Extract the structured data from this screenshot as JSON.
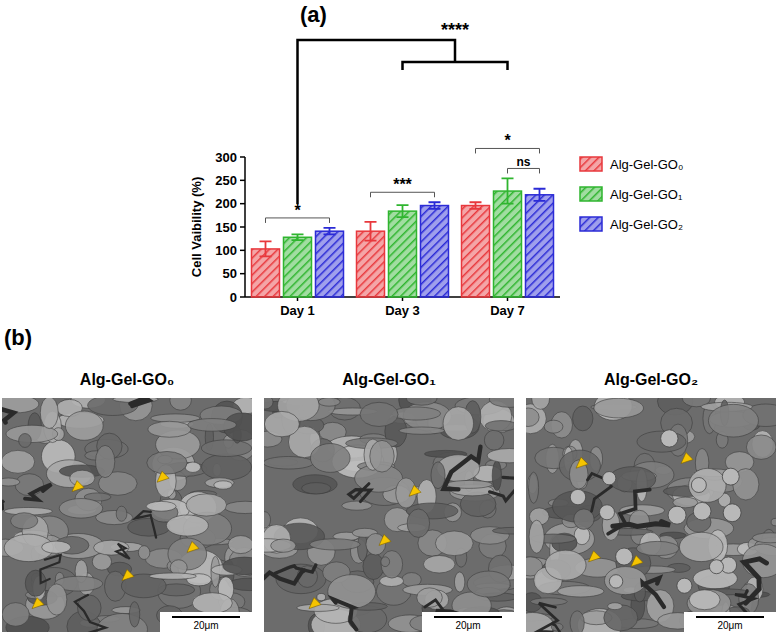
{
  "chart_data": {
    "type": "bar",
    "panel": "(a)",
    "y_label": "Cell Vaibility (%)",
    "categories": [
      "Day 1",
      "Day 3",
      "Day 7"
    ],
    "series": [
      {
        "name": "Alg-Gel-GO₀",
        "color": "#e8383d",
        "values": [
          103,
          141,
          196
        ],
        "errors": [
          16,
          20,
          7
        ]
      },
      {
        "name": "Alg-Gel-GO₁",
        "color": "#2fb52f",
        "values": [
          128,
          184,
          227
        ],
        "errors": [
          6,
          13,
          27
        ]
      },
      {
        "name": "Alg-Gel-GO₂",
        "color": "#2b2bd6",
        "values": [
          141,
          196,
          219
        ],
        "errors": [
          7,
          7,
          13
        ]
      }
    ],
    "ylim": [
      0,
      300
    ],
    "yticks": [
      0,
      50,
      100,
      150,
      200,
      250,
      300
    ],
    "grid": false,
    "legend": "right",
    "annotations": [
      {
        "text": "*",
        "category": 0,
        "from": 0,
        "to": 2
      },
      {
        "text": "***",
        "category": 1,
        "from": 0,
        "to": 2
      },
      {
        "text": "ns",
        "category": 2,
        "from": 1,
        "to": 2
      },
      {
        "text": "*",
        "category": 2,
        "from": 0,
        "to": 2
      },
      {
        "text": "****",
        "from_category": 0,
        "to_categories": [
          1,
          2
        ]
      }
    ]
  },
  "images": {
    "panel": "(b)",
    "items": [
      {
        "title": "Alg-Gel-GO₀",
        "scale_bar": "20μm"
      },
      {
        "title": "Alg-Gel-GO₁",
        "scale_bar": "20μm"
      },
      {
        "title": "Alg-Gel-GO₂",
        "scale_bar": "20μm"
      }
    ]
  }
}
